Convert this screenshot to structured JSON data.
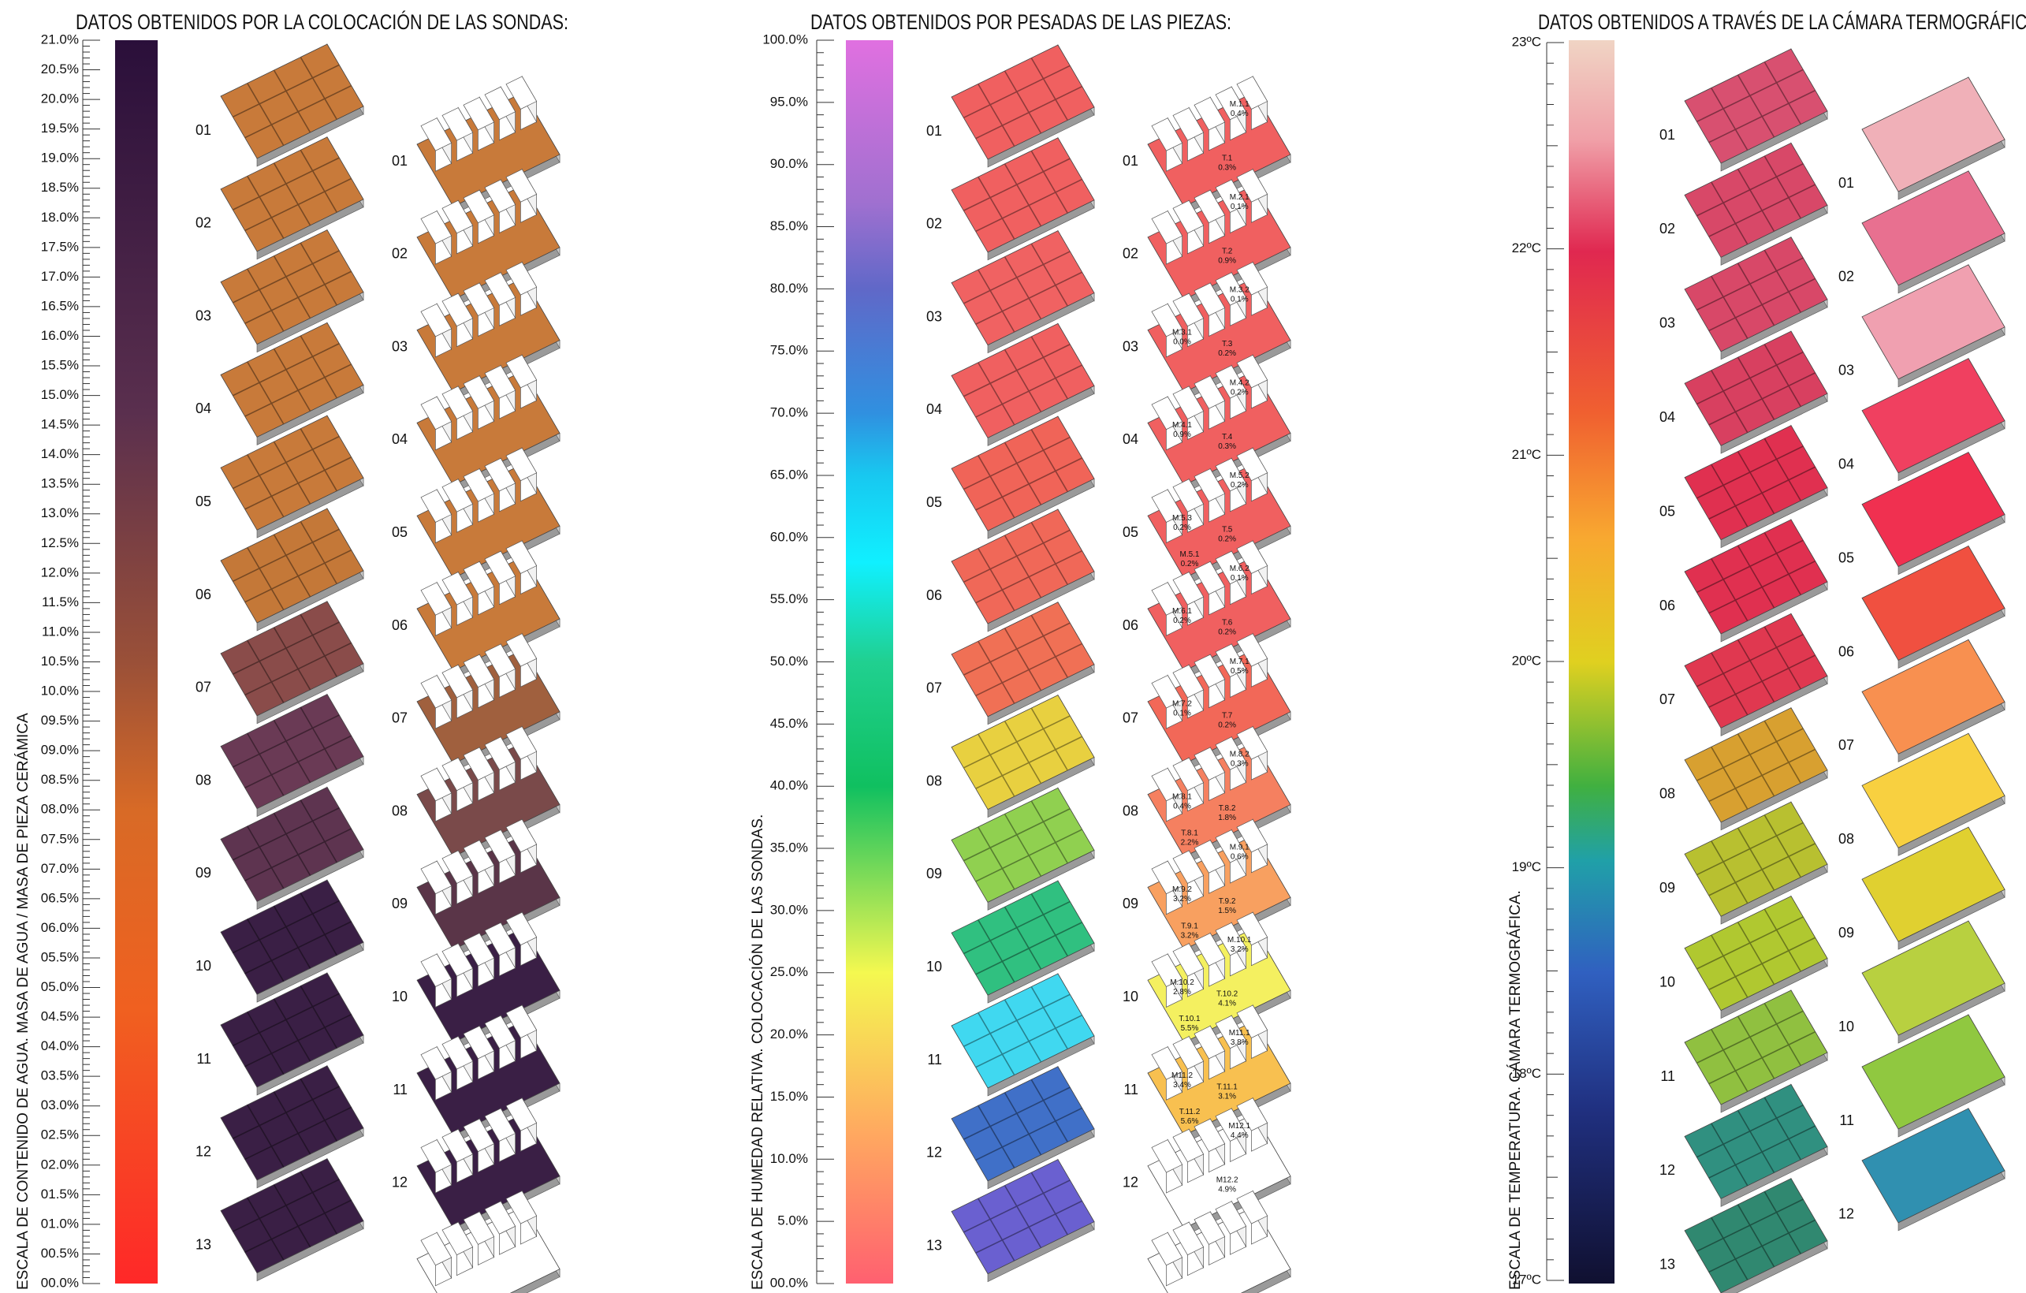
{
  "panels": [
    {
      "title": "DATOS OBTENIDOS POR LA COLOCACIÓN DE LAS SONDAS:",
      "axis_title": "ESCALA DE CONTENIDO DE AGUA. MASA DE AGUA / MASA DE PIEZA CERÁMICA",
      "scale_labels": [
        "21.0%",
        "20.5%",
        "20.0%",
        "19.5%",
        "19.0%",
        "18.5%",
        "18.0%",
        "17.5%",
        "17.0%",
        "16.5%",
        "16.0%",
        "15.5%",
        "15.0%",
        "14.5%",
        "14.0%",
        "13.5%",
        "13.0%",
        "12.5%",
        "12.0%",
        "11.5%",
        "11.0%",
        "10.5%",
        "10.0%",
        "09.5%",
        "09.0%",
        "08.5%",
        "08.0%",
        "07.5%",
        "07.0%",
        "06.5%",
        "06.0%",
        "05.5%",
        "05.0%",
        "04.5%",
        "04.0%",
        "03.5%",
        "03.0%",
        "02.5%",
        "02.0%",
        "01.5%",
        "01.0%",
        "00.5%",
        "00.0%"
      ],
      "left_samples": [
        "01",
        "02",
        "03",
        "04",
        "05",
        "06",
        "07",
        "08",
        "09",
        "10",
        "11",
        "12",
        "13"
      ],
      "right_samples": [
        "01",
        "02",
        "03",
        "04",
        "05",
        "06",
        "07",
        "08",
        "09",
        "10",
        "11",
        "12"
      ]
    },
    {
      "title": "DATOS OBTENIDOS POR PESADAS DE LAS PIEZAS:",
      "axis_title": "ESCALA DE HUMEDAD RELATIVA. COLOCACIÓN DE LAS SONDAS.",
      "scale_labels": [
        "100.0%",
        "95.0%",
        "90.0%",
        "85.0%",
        "80.0%",
        "75.0%",
        "70.0%",
        "65.0%",
        "60.0%",
        "55.0%",
        "50.0%",
        "45.0%",
        "40.0%",
        "35.0%",
        "30.0%",
        "25.0%",
        "20.0%",
        "15.0%",
        "10.0%",
        "5.0%",
        "00.0%"
      ],
      "left_samples": [
        "01",
        "02",
        "03",
        "04",
        "05",
        "06",
        "07",
        "08",
        "09",
        "10",
        "11",
        "12",
        "13"
      ],
      "right_samples": [
        "01",
        "02",
        "03",
        "04",
        "05",
        "06",
        "07",
        "08",
        "09",
        "10",
        "11",
        "12"
      ],
      "right_annotations": [
        [
          {
            "name": "M.1.1",
            "value": "0.4%"
          },
          {
            "name": "T.1",
            "value": "0.3%"
          }
        ],
        [
          {
            "name": "M.2.1",
            "value": "0.1%"
          },
          {
            "name": "T.2",
            "value": "0.9%"
          }
        ],
        [
          {
            "name": "M.3.2",
            "value": "0.1%"
          },
          {
            "name": "T.3",
            "value": "0.2%"
          },
          {
            "name": "M.3.1",
            "value": "0.0%"
          }
        ],
        [
          {
            "name": "M.4.2",
            "value": "0.2%"
          },
          {
            "name": "T.4",
            "value": "0.3%"
          },
          {
            "name": "M.4.1",
            "value": "0.9%"
          }
        ],
        [
          {
            "name": "M.5.2",
            "value": "0.2%"
          },
          {
            "name": "T.5",
            "value": "0.2%"
          },
          {
            "name": "M.5.3",
            "value": "0.2%"
          },
          {
            "name": "M.5.1",
            "value": "0.2%"
          }
        ],
        [
          {
            "name": "M.6.2",
            "value": "0.1%"
          },
          {
            "name": "T.6",
            "value": "0.2%"
          },
          {
            "name": "M.6.1",
            "value": "0.2%"
          }
        ],
        [
          {
            "name": "M.7.1",
            "value": "0.5%"
          },
          {
            "name": "T.7",
            "value": "0.2%"
          },
          {
            "name": "M.7.2",
            "value": "0.1%"
          }
        ],
        [
          {
            "name": "M.8.2",
            "value": "0.3%"
          },
          {
            "name": "T.8.2",
            "value": "1.8%"
          },
          {
            "name": "M.8.1",
            "value": "0.4%"
          },
          {
            "name": "T.8.1",
            "value": "2.2%"
          }
        ],
        [
          {
            "name": "M.9.1",
            "value": "0.6%"
          },
          {
            "name": "T.9.2",
            "value": "1.5%"
          },
          {
            "name": "M.9.2",
            "value": "3.2%"
          },
          {
            "name": "T.9.1",
            "value": "3.2%"
          }
        ],
        [
          {
            "name": "M.10.1",
            "value": "3.2%"
          },
          {
            "name": "T.10.2",
            "value": "4.1%"
          },
          {
            "name": "M.10.2",
            "value": "2.8%"
          },
          {
            "name": "T.10.1",
            "value": "5.5%"
          }
        ],
        [
          {
            "name": "M11.1",
            "value": "3.8%"
          },
          {
            "name": "T.11.1",
            "value": "3.1%"
          },
          {
            "name": "M11.2",
            "value": "3.4%"
          },
          {
            "name": "T.11.2",
            "value": "5.6%"
          }
        ],
        [
          {
            "name": "M12.1",
            "value": "4.4%"
          },
          {
            "name": "M12.2",
            "value": "4.9%"
          }
        ]
      ]
    },
    {
      "title": "DATOS OBTENIDOS A TRAVÉS DE LA CÁMARA TERMOGRÁFICA:",
      "axis_title": "ESCALA DE TEMPERATURA. CÁMARA TERMOGRÁFICA.",
      "scale_labels": [
        "23ºC",
        "22ºC",
        "21ºC",
        "20ºC",
        "19ºC",
        "18ºC",
        "17ºC"
      ],
      "left_samples": [
        "01",
        "02",
        "03",
        "04",
        "05",
        "06",
        "07",
        "08",
        "09",
        "10",
        "11",
        "12",
        "13"
      ],
      "right_samples": [
        "01",
        "02",
        "03",
        "04",
        "05",
        "06",
        "07",
        "08",
        "09",
        "10",
        "11",
        "12"
      ]
    }
  ]
}
